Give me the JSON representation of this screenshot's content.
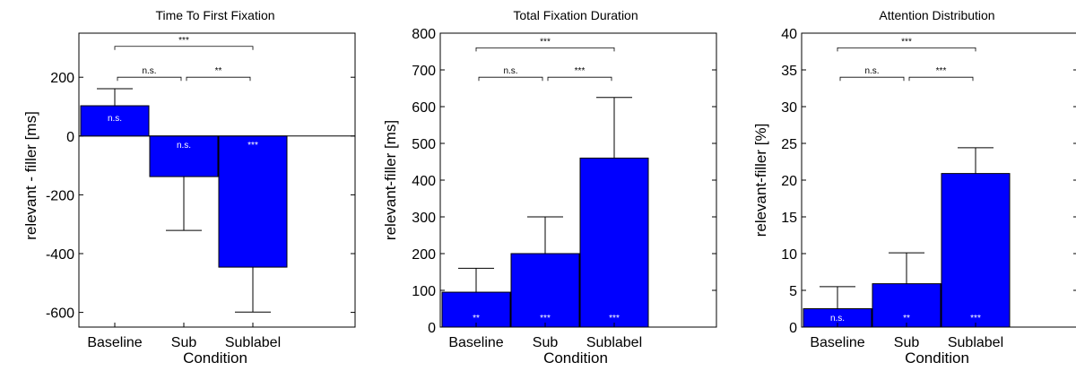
{
  "chart_data": [
    {
      "type": "bar",
      "title": "Time To First Fixation",
      "xlabel": "Condition",
      "ylabel": "relevant - filler [ms]",
      "categories": [
        "Baseline",
        "Sub",
        "Sublabel"
      ],
      "values": [
        103,
        -138,
        -446
      ],
      "errors": [
        58,
        183,
        153
      ],
      "ylim": [
        -650,
        350
      ],
      "yticks": [
        -600,
        -400,
        -200,
        0,
        200
      ],
      "ytick_labels": [
        "-600",
        "-400",
        "-200",
        "0",
        "200"
      ],
      "zero_line": true,
      "bar_labels": [
        "n.s.",
        "n.s.",
        "***"
      ],
      "bar_label_mode": "top",
      "comparisons": [
        {
          "from": 0,
          "to": 1,
          "label": "n.s.",
          "y": 200
        },
        {
          "from": 1,
          "to": 2,
          "label": "**",
          "y": 200
        },
        {
          "from": 0,
          "to": 2,
          "label": "***",
          "y": 305
        }
      ],
      "bar_color": "#0000ff",
      "grid": false
    },
    {
      "type": "bar",
      "title": "Total Fixation Duration",
      "xlabel": "Condition",
      "ylabel": "relevant-filler [ms]",
      "categories": [
        "Baseline",
        "Sub",
        "Sublabel"
      ],
      "values": [
        95,
        200,
        460
      ],
      "errors": [
        65,
        100,
        165
      ],
      "ylim": [
        0,
        800
      ],
      "yticks": [
        0,
        100,
        200,
        300,
        400,
        500,
        600,
        700,
        800
      ],
      "ytick_labels": [
        "0",
        "100",
        "200",
        "300",
        "400",
        "500",
        "600",
        "700",
        "800"
      ],
      "zero_line": false,
      "bar_labels": [
        "**",
        "***",
        "***"
      ],
      "bar_label_mode": "bottom",
      "comparisons": [
        {
          "from": 0,
          "to": 1,
          "label": "n.s.",
          "y": 680
        },
        {
          "from": 1,
          "to": 2,
          "label": "***",
          "y": 680
        },
        {
          "from": 0,
          "to": 2,
          "label": "***",
          "y": 760
        }
      ],
      "bar_color": "#0000ff",
      "grid": false
    },
    {
      "type": "bar",
      "title": "Attention Distribution",
      "xlabel": "Condition",
      "ylabel": "relevant-filler [%]",
      "categories": [
        "Baseline",
        "Sub",
        "Sublabel"
      ],
      "values": [
        2.5,
        5.9,
        20.9
      ],
      "errors": [
        3.0,
        4.2,
        3.5
      ],
      "ylim": [
        0,
        40
      ],
      "yticks": [
        0,
        5,
        10,
        15,
        20,
        25,
        30,
        35,
        40
      ],
      "ytick_labels": [
        "0",
        "5",
        "10",
        "15",
        "20",
        "25",
        "30",
        "35",
        "40"
      ],
      "zero_line": false,
      "bar_labels": [
        "n.s.",
        "**",
        "***"
      ],
      "bar_label_mode": "bottom",
      "comparisons": [
        {
          "from": 0,
          "to": 1,
          "label": "n.s.",
          "y": 34
        },
        {
          "from": 1,
          "to": 2,
          "label": "***",
          "y": 34
        },
        {
          "from": 0,
          "to": 2,
          "label": "***",
          "y": 38
        }
      ],
      "bar_color": "#0000ff",
      "grid": false
    }
  ]
}
